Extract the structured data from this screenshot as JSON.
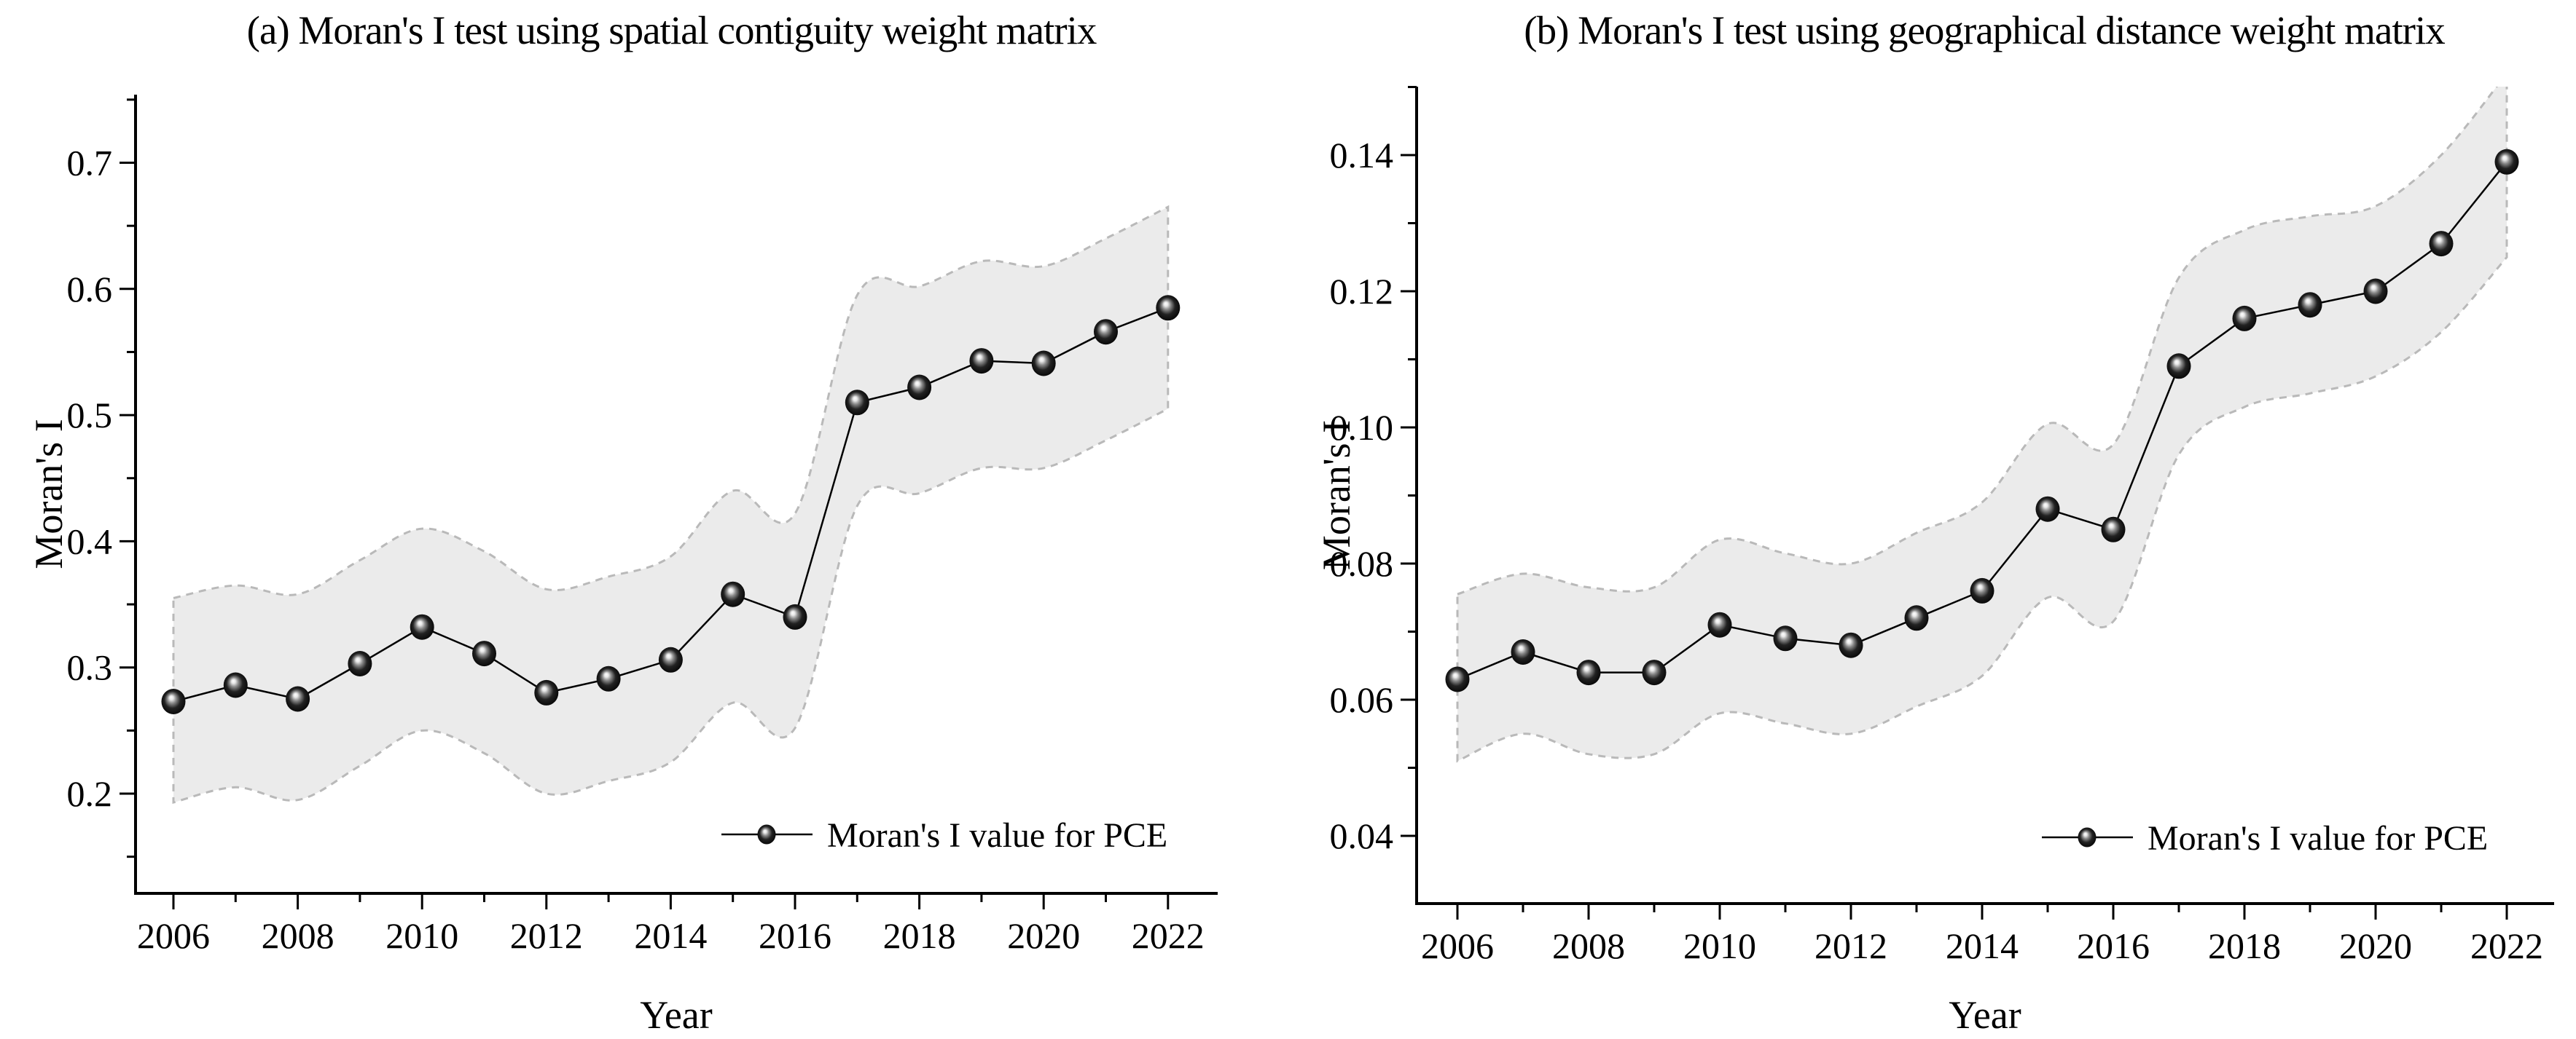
{
  "figure_type": "two-panel line chart with confidence bands",
  "chart_data": [
    {
      "type": "line",
      "panel": "a",
      "title": "(a) Moran's I test using spatial contiguity weight matrix",
      "xlabel": "Year",
      "ylabel": "Moran's I",
      "legend_label": "Moran's I value for PCE",
      "legend_position": "lower right inside plot",
      "grid": false,
      "x": [
        2006,
        2007,
        2008,
        2009,
        2010,
        2011,
        2012,
        2013,
        2014,
        2015,
        2016,
        2017,
        2018,
        2019,
        2020,
        2021,
        2022
      ],
      "y": [
        0.273,
        0.286,
        0.275,
        0.303,
        0.332,
        0.311,
        0.28,
        0.291,
        0.306,
        0.358,
        0.34,
        0.51,
        0.522,
        0.543,
        0.541,
        0.566,
        0.585
      ],
      "band_lower": [
        0.193,
        0.205,
        0.195,
        0.222,
        0.25,
        0.232,
        0.2,
        0.21,
        0.225,
        0.272,
        0.252,
        0.428,
        0.438,
        0.458,
        0.458,
        0.48,
        0.505
      ],
      "band_upper": [
        0.355,
        0.365,
        0.358,
        0.385,
        0.41,
        0.392,
        0.362,
        0.372,
        0.388,
        0.44,
        0.422,
        0.595,
        0.602,
        0.622,
        0.618,
        0.64,
        0.665
      ],
      "ylim": [
        0.121,
        0.754
      ],
      "xlim": [
        2005.4,
        2022.8
      ],
      "ytick_values": [
        0.2,
        0.3,
        0.4,
        0.5,
        0.6,
        0.7
      ],
      "ytick_labels": [
        "0.2",
        "0.3",
        "0.4",
        "0.5",
        "0.6",
        "0.7"
      ],
      "y_minor_ticks": [
        0.15,
        0.25,
        0.35,
        0.45,
        0.55,
        0.65,
        0.75
      ],
      "xtick_values": [
        2006,
        2008,
        2010,
        2012,
        2014,
        2016,
        2018,
        2020,
        2022
      ],
      "xtick_labels": [
        "2006",
        "2008",
        "2010",
        "2012",
        "2014",
        "2016",
        "2018",
        "2020",
        "2022"
      ],
      "x_minor_ticks": [
        2007,
        2009,
        2011,
        2013,
        2015,
        2017,
        2019,
        2021
      ],
      "band_fill_color": "#ebebeb",
      "band_edge_color": "#b9b9b9",
      "band_edge_style": "dashed",
      "line_color": "#000000",
      "marker": "sphere (3D black ball with highlight)"
    },
    {
      "type": "line",
      "panel": "b",
      "title": "(b) Moran's I test using geographical distance weight matrix",
      "xlabel": "Year",
      "ylabel": "Moran's I",
      "legend_label": "Moran's I value for PCE",
      "legend_position": "lower right inside plot",
      "grid": false,
      "x": [
        2006,
        2007,
        2008,
        2009,
        2010,
        2011,
        2012,
        2013,
        2014,
        2015,
        2016,
        2017,
        2018,
        2019,
        2020,
        2021,
        2022
      ],
      "y": [
        0.063,
        0.067,
        0.064,
        0.064,
        0.071,
        0.069,
        0.068,
        0.072,
        0.076,
        0.088,
        0.085,
        0.109,
        0.116,
        0.118,
        0.12,
        0.127,
        0.139
      ],
      "band_lower": [
        0.051,
        0.055,
        0.052,
        0.052,
        0.058,
        0.0565,
        0.055,
        0.059,
        0.0635,
        0.075,
        0.0715,
        0.096,
        0.103,
        0.105,
        0.1075,
        0.114,
        0.125
      ],
      "band_upper": [
        0.0755,
        0.0785,
        0.0765,
        0.0765,
        0.0835,
        0.0815,
        0.08,
        0.0845,
        0.089,
        0.1005,
        0.0975,
        0.122,
        0.129,
        0.131,
        0.1325,
        0.14,
        0.152
      ],
      "ylim": [
        0.0301,
        0.1501
      ],
      "xlim": [
        2005.4,
        2022.7
      ],
      "ytick_values": [
        0.04,
        0.06,
        0.08,
        0.1,
        0.12,
        0.14
      ],
      "ytick_labels": [
        "0.04",
        "0.06",
        "0.08",
        "0.10",
        "0.12",
        "0.14"
      ],
      "y_minor_ticks": [
        0.05,
        0.07,
        0.09,
        0.11,
        0.13,
        0.15
      ],
      "xtick_values": [
        2006,
        2008,
        2010,
        2012,
        2014,
        2016,
        2018,
        2020,
        2022
      ],
      "xtick_labels": [
        "2006",
        "2008",
        "2010",
        "2012",
        "2014",
        "2016",
        "2018",
        "2020",
        "2022"
      ],
      "x_minor_ticks": [
        2007,
        2009,
        2011,
        2013,
        2015,
        2017,
        2019,
        2021
      ],
      "band_fill_color": "#ebebeb",
      "band_edge_color": "#b9b9b9",
      "band_edge_style": "dashed",
      "line_color": "#000000",
      "marker": "sphere (3D black ball with highlight)"
    }
  ]
}
